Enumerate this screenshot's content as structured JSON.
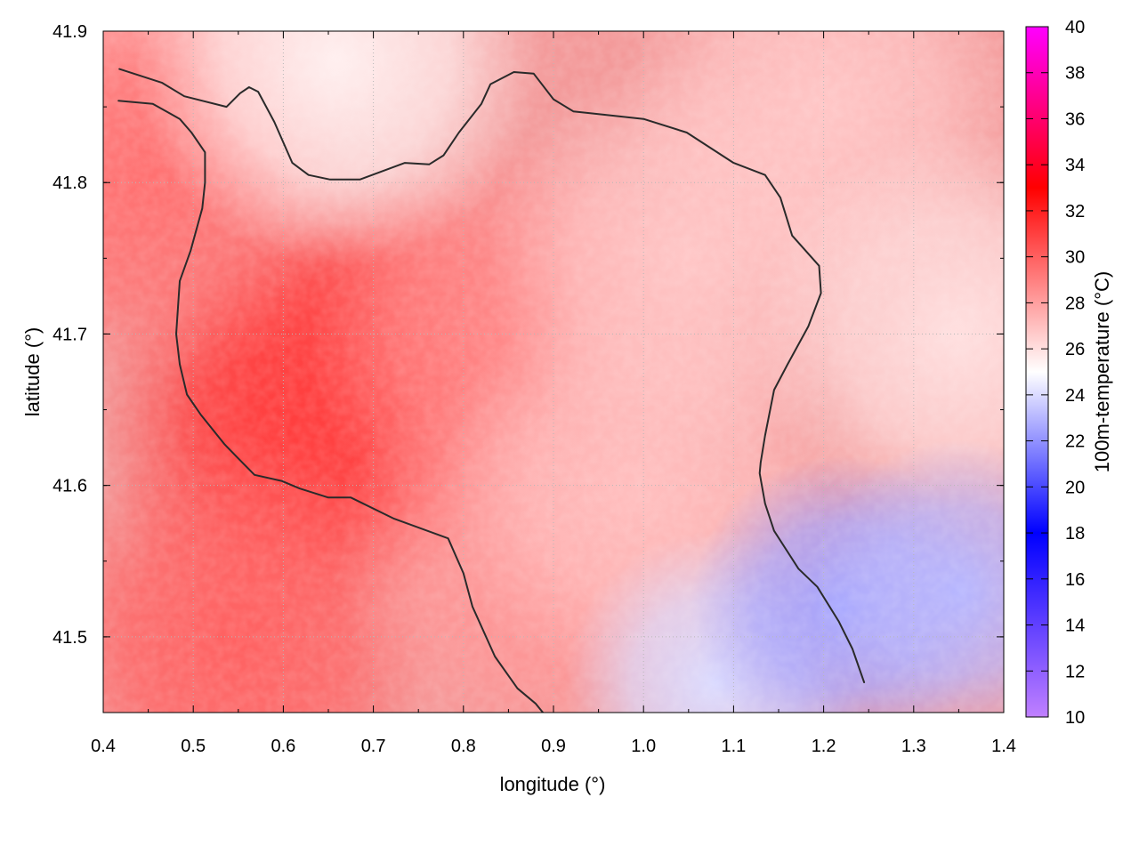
{
  "chart_data": {
    "type": "heatmap",
    "title": "",
    "xlabel": "longitude (°)",
    "ylabel": "latitude (°)",
    "colorbar_label": "100m-temperature (°C)",
    "xlim": [
      0.4,
      1.4
    ],
    "ylim": [
      41.45,
      41.9
    ],
    "x_ticks": [
      0.4,
      0.5,
      0.6,
      0.7,
      0.8,
      0.9,
      1.0,
      1.1,
      1.2,
      1.3,
      1.4
    ],
    "x_tick_labels": [
      "0.4",
      "0.5",
      "0.6",
      "0.7",
      "0.8",
      "0.9",
      "1.0",
      "1.1",
      "1.2",
      "1.3",
      "1.4"
    ],
    "y_ticks": [
      41.5,
      41.6,
      41.7,
      41.8,
      41.9
    ],
    "y_tick_labels": [
      "41.5",
      "41.6",
      "41.7",
      "41.8",
      "41.9"
    ],
    "colorbar_range": [
      10,
      40
    ],
    "colorbar_ticks": [
      10,
      12,
      14,
      16,
      18,
      20,
      22,
      24,
      26,
      28,
      30,
      32,
      34,
      36,
      38,
      40
    ],
    "colorbar_tick_labels": [
      "10",
      "12",
      "14",
      "16",
      "18",
      "20",
      "22",
      "24",
      "26",
      "28",
      "30",
      "32",
      "34",
      "36",
      "38",
      "40"
    ],
    "colormap": [
      {
        "value": 10,
        "color": "#c080ff"
      },
      {
        "value": 18,
        "color": "#0000ff"
      },
      {
        "value": 25,
        "color": "#ffffff"
      },
      {
        "value": 33,
        "color": "#ff0000"
      },
      {
        "value": 40,
        "color": "#ff00ff"
      }
    ],
    "grid": true,
    "temperature_field": [
      {
        "x": 0.4,
        "y": 41.9,
        "t": 27.5
      },
      {
        "x": 0.62,
        "y": 41.64,
        "t": 31.2
      },
      {
        "x": 0.7,
        "y": 41.67,
        "t": 31.0
      },
      {
        "x": 0.45,
        "y": 41.8,
        "t": 29.5
      },
      {
        "x": 0.55,
        "y": 41.5,
        "t": 30.0
      },
      {
        "x": 0.85,
        "y": 41.7,
        "t": 28.7
      },
      {
        "x": 0.88,
        "y": 41.55,
        "t": 28.3
      },
      {
        "x": 1.0,
        "y": 41.6,
        "t": 27.0
      },
      {
        "x": 1.05,
        "y": 41.75,
        "t": 26.8
      },
      {
        "x": 1.2,
        "y": 41.85,
        "t": 26.8
      },
      {
        "x": 1.35,
        "y": 41.7,
        "t": 26.0
      },
      {
        "x": 1.08,
        "y": 41.47,
        "t": 24.0
      },
      {
        "x": 1.22,
        "y": 41.52,
        "t": 22.5
      },
      {
        "x": 1.35,
        "y": 41.53,
        "t": 23.0
      },
      {
        "x": 0.66,
        "y": 41.88,
        "t": 25.5
      }
    ],
    "contours": [
      {
        "level": "a",
        "points": [
          [
            0.418,
            41.875
          ],
          [
            0.465,
            41.866
          ],
          [
            0.49,
            41.857
          ],
          [
            0.537,
            41.85
          ],
          [
            0.552,
            41.859
          ],
          [
            0.562,
            41.863
          ],
          [
            0.572,
            41.86
          ],
          [
            0.59,
            41.84
          ],
          [
            0.61,
            41.813
          ],
          [
            0.628,
            41.805
          ],
          [
            0.652,
            41.802
          ],
          [
            0.685,
            41.802
          ],
          [
            0.735,
            41.813
          ],
          [
            0.762,
            41.812
          ],
          [
            0.778,
            41.818
          ],
          [
            0.795,
            41.833
          ],
          [
            0.82,
            41.852
          ],
          [
            0.83,
            41.865
          ],
          [
            0.856,
            41.873
          ],
          [
            0.878,
            41.872
          ],
          [
            0.9,
            41.855
          ],
          [
            0.922,
            41.847
          ],
          [
            1.0,
            41.842
          ],
          [
            1.048,
            41.833
          ],
          [
            1.1,
            41.813
          ],
          [
            1.135,
            41.805
          ],
          [
            1.152,
            41.79
          ],
          [
            1.165,
            41.765
          ],
          [
            1.195,
            41.745
          ],
          [
            1.197,
            41.727
          ],
          [
            1.183,
            41.705
          ],
          [
            1.16,
            41.68
          ],
          [
            1.145,
            41.663
          ],
          [
            1.135,
            41.633
          ],
          [
            1.13,
            41.615
          ],
          [
            1.129,
            41.608
          ],
          [
            1.135,
            41.588
          ],
          [
            1.145,
            41.57
          ],
          [
            1.172,
            41.545
          ],
          [
            1.193,
            41.533
          ],
          [
            1.217,
            41.51
          ],
          [
            1.232,
            41.492
          ],
          [
            1.245,
            41.47
          ]
        ]
      },
      {
        "level": "b",
        "points": [
          [
            0.417,
            41.854
          ],
          [
            0.455,
            41.852
          ],
          [
            0.485,
            41.842
          ],
          [
            0.498,
            41.833
          ],
          [
            0.513,
            41.82
          ],
          [
            0.513,
            41.8
          ],
          [
            0.51,
            41.783
          ],
          [
            0.497,
            41.755
          ],
          [
            0.485,
            41.735
          ],
          [
            0.481,
            41.7
          ],
          [
            0.485,
            41.68
          ],
          [
            0.493,
            41.66
          ],
          [
            0.508,
            41.647
          ],
          [
            0.535,
            41.627
          ],
          [
            0.548,
            41.619
          ],
          [
            0.568,
            41.607
          ],
          [
            0.598,
            41.603
          ],
          [
            0.618,
            41.598
          ],
          [
            0.65,
            41.592
          ],
          [
            0.675,
            41.592
          ],
          [
            0.723,
            41.578
          ],
          [
            0.783,
            41.565
          ],
          [
            0.8,
            41.542
          ],
          [
            0.81,
            41.52
          ],
          [
            0.835,
            41.487
          ],
          [
            0.86,
            41.466
          ],
          [
            0.88,
            41.456
          ],
          [
            0.902,
            41.44
          ]
        ]
      }
    ]
  }
}
